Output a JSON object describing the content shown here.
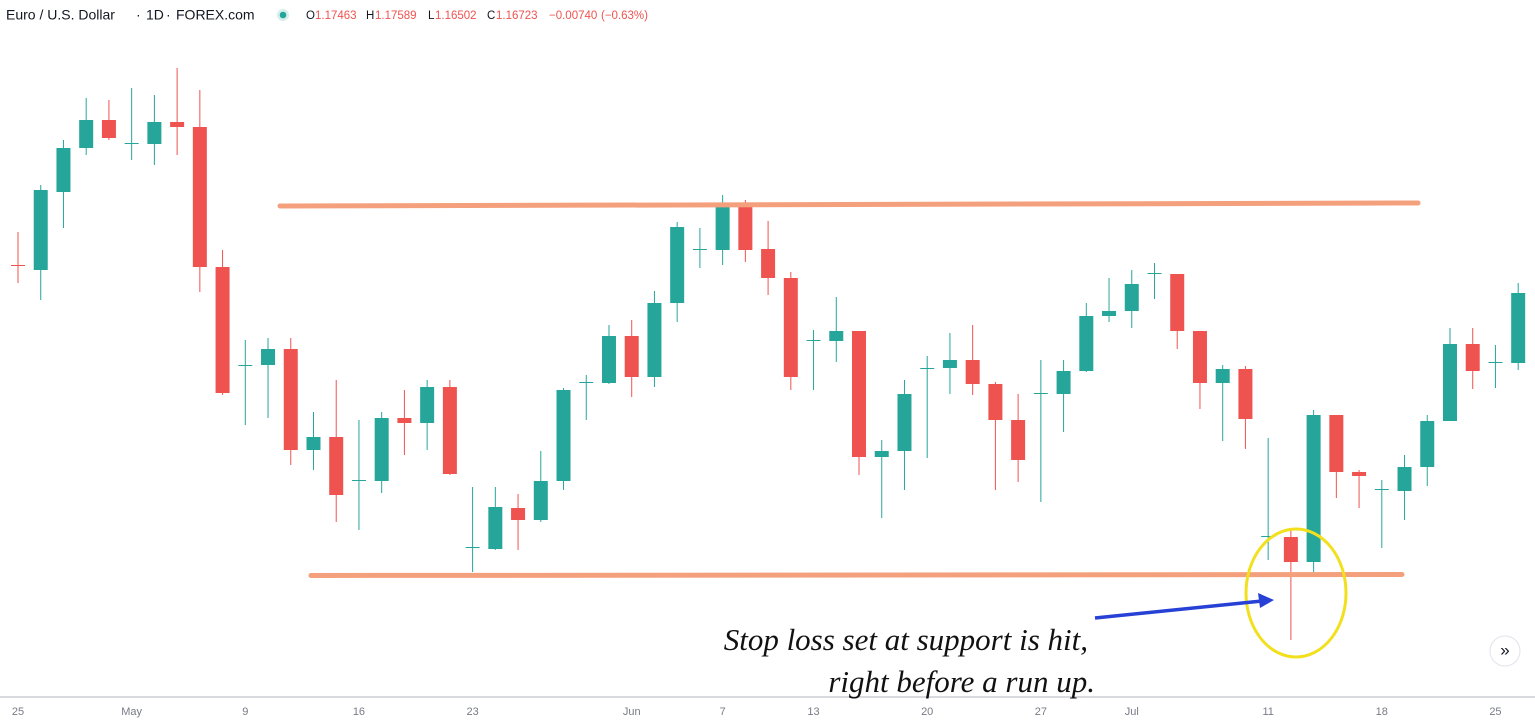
{
  "header": {
    "symbol": "Euro / U.S. Dollar",
    "interval": "1D",
    "source": "FOREX.com",
    "ohlc": [
      {
        "label": "O",
        "value": "1.17463"
      },
      {
        "label": "H",
        "value": "1.17589"
      },
      {
        "label": "L",
        "value": "1.16502"
      },
      {
        "label": "C",
        "value": "1.16723"
      }
    ],
    "change": "−0.00740",
    "change_percent": "(−0.63%)"
  },
  "chart_data": {
    "type": "candlestick",
    "categories": [
      "25",
      null,
      null,
      null,
      null,
      "May",
      null,
      null,
      null,
      null,
      "9",
      null,
      null,
      null,
      null,
      "16",
      null,
      null,
      null,
      null,
      "23",
      null,
      null,
      null,
      null,
      null,
      null,
      "Jun",
      null,
      null,
      null,
      "7",
      null,
      null,
      null,
      "13",
      null,
      null,
      null,
      null,
      "20",
      null,
      null,
      null,
      null,
      "27",
      null,
      null,
      null,
      "Jul",
      null,
      null,
      null,
      null,
      null,
      "11",
      null,
      null,
      null,
      null,
      "18",
      null,
      null,
      null,
      null,
      "25",
      null
    ],
    "open": [
      1.2235,
      1.223,
      1.2308,
      1.2352,
      1.238,
      1.2356,
      1.2356,
      1.2378,
      1.2373,
      1.2233,
      1.2134,
      1.2135,
      1.2151,
      1.205,
      1.2063,
      1.2019,
      1.2019,
      1.2082,
      1.2077,
      1.2113,
      1.1952,
      1.1951,
      1.1992,
      1.198,
      1.2019,
      1.2117,
      1.2117,
      1.2164,
      1.2123,
      1.2197,
      1.225,
      1.225,
      1.2295,
      1.2251,
      1.2222,
      1.2159,
      1.2159,
      1.2169,
      1.2043,
      1.2049,
      1.2131,
      1.2132,
      1.214,
      1.2116,
      1.208,
      1.2106,
      1.2106,
      1.2129,
      1.2184,
      1.2189,
      1.2226,
      1.2226,
      1.2169,
      1.2117,
      1.2131,
      1.1963,
      1.1963,
      1.1938,
      1.2085,
      1.2028,
      1.201,
      1.2009,
      1.2033,
      1.2079,
      1.2156,
      1.2137,
      1.2137
    ],
    "high": [
      1.2268,
      1.2315,
      1.236,
      1.2402,
      1.24,
      1.2412,
      1.2405,
      1.2432,
      1.241,
      1.225,
      1.216,
      1.2162,
      1.2162,
      1.2088,
      1.212,
      1.208,
      1.2088,
      1.211,
      1.212,
      1.212,
      1.2013,
      1.2013,
      1.2006,
      1.2049,
      1.2112,
      1.2125,
      1.2175,
      1.218,
      1.2209,
      1.2278,
      1.2272,
      1.2305,
      1.23,
      1.2279,
      1.2228,
      1.217,
      1.2203,
      1.2169,
      1.206,
      1.212,
      1.2144,
      1.2167,
      1.2175,
      1.2118,
      1.2106,
      1.214,
      1.214,
      1.2197,
      1.2222,
      1.223,
      1.2237,
      1.2226,
      1.2169,
      1.2135,
      1.2134,
      1.2062,
      1.1972,
      1.209,
      1.2085,
      1.203,
      1.202,
      1.2045,
      1.2085,
      1.2172,
      1.2172,
      1.2155,
      1.2217
    ],
    "low": [
      1.2217,
      1.22,
      1.2272,
      1.2345,
      1.236,
      1.234,
      1.2335,
      1.2345,
      1.2208,
      1.2105,
      1.2075,
      1.2082,
      1.2035,
      1.203,
      1.1978,
      1.197,
      1.2007,
      1.2045,
      1.205,
      1.2025,
      1.1928,
      1.195,
      1.195,
      1.1978,
      1.201,
      1.208,
      1.2116,
      1.2103,
      1.2113,
      1.2178,
      1.2232,
      1.2235,
      1.2238,
      1.2205,
      1.211,
      1.211,
      1.2138,
      1.2025,
      1.1982,
      1.201,
      1.2042,
      1.2106,
      1.2105,
      1.201,
      1.2018,
      1.1998,
      1.2068,
      1.2128,
      1.2178,
      1.2172,
      1.2201,
      1.2151,
      1.2091,
      1.2059,
      1.2051,
      1.194,
      1.186,
      1.1928,
      1.2002,
      1.1992,
      1.1952,
      1.198,
      1.2014,
      1.2079,
      1.2111,
      1.2112,
      1.213
    ],
    "close": [
      1.2234,
      1.231,
      1.2352,
      1.238,
      1.2362,
      1.2357,
      1.2378,
      1.2373,
      1.2233,
      1.2107,
      1.2135,
      1.2151,
      1.205,
      1.2063,
      1.2005,
      1.202,
      1.2082,
      1.2077,
      1.2113,
      1.2026,
      1.1953,
      1.1993,
      1.198,
      1.2019,
      1.211,
      1.2118,
      1.2164,
      1.2123,
      1.2197,
      1.2273,
      1.2251,
      1.2295,
      1.225,
      1.2222,
      1.2123,
      1.216,
      1.2169,
      1.2043,
      1.2049,
      1.2106,
      1.2132,
      1.214,
      1.2116,
      1.208,
      1.204,
      1.2107,
      1.2129,
      1.2184,
      1.2189,
      1.2216,
      1.2227,
      1.2169,
      1.2117,
      1.2131,
      1.2081,
      1.1964,
      1.1938,
      1.2085,
      1.2028,
      1.2024,
      1.2011,
      1.2033,
      1.2079,
      1.2156,
      1.2129,
      1.2138,
      1.2207
    ],
    "up_color": "#26a69a",
    "down_color": "#ef5350",
    "ylim": [
      1.1805,
      1.247
    ],
    "annotations": [
      "Stop loss set at support is hit,",
      "right before a run up."
    ]
  },
  "scroll_button": "»"
}
